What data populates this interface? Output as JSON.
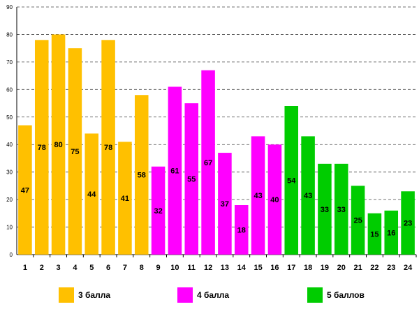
{
  "chart_data": {
    "type": "bar",
    "categories": [
      "1",
      "2",
      "3",
      "4",
      "5",
      "6",
      "7",
      "8",
      "9",
      "10",
      "11",
      "12",
      "13",
      "14",
      "15",
      "16",
      "17",
      "18",
      "19",
      "20",
      "21",
      "22",
      "23",
      "24"
    ],
    "values": [
      47,
      78,
      80,
      75,
      44,
      78,
      41,
      58,
      32,
      61,
      55,
      67,
      37,
      18,
      43,
      40,
      54,
      43,
      33,
      33,
      25,
      15,
      16,
      23
    ],
    "groups": [
      0,
      0,
      0,
      0,
      0,
      0,
      0,
      0,
      1,
      1,
      1,
      1,
      1,
      1,
      1,
      1,
      2,
      2,
      2,
      2,
      2,
      2,
      2,
      2
    ],
    "ylim": [
      0,
      90
    ],
    "yticks": [
      0,
      10,
      20,
      30,
      40,
      50,
      60,
      70,
      80,
      90
    ],
    "grid": true,
    "legend_position": "bottom",
    "series": [
      {
        "name": "3 балла",
        "color": "#FFC000"
      },
      {
        "name": "4 балла",
        "color": "#FF00FF"
      },
      {
        "name": "5 баллов",
        "color": "#00CC00"
      }
    ]
  }
}
